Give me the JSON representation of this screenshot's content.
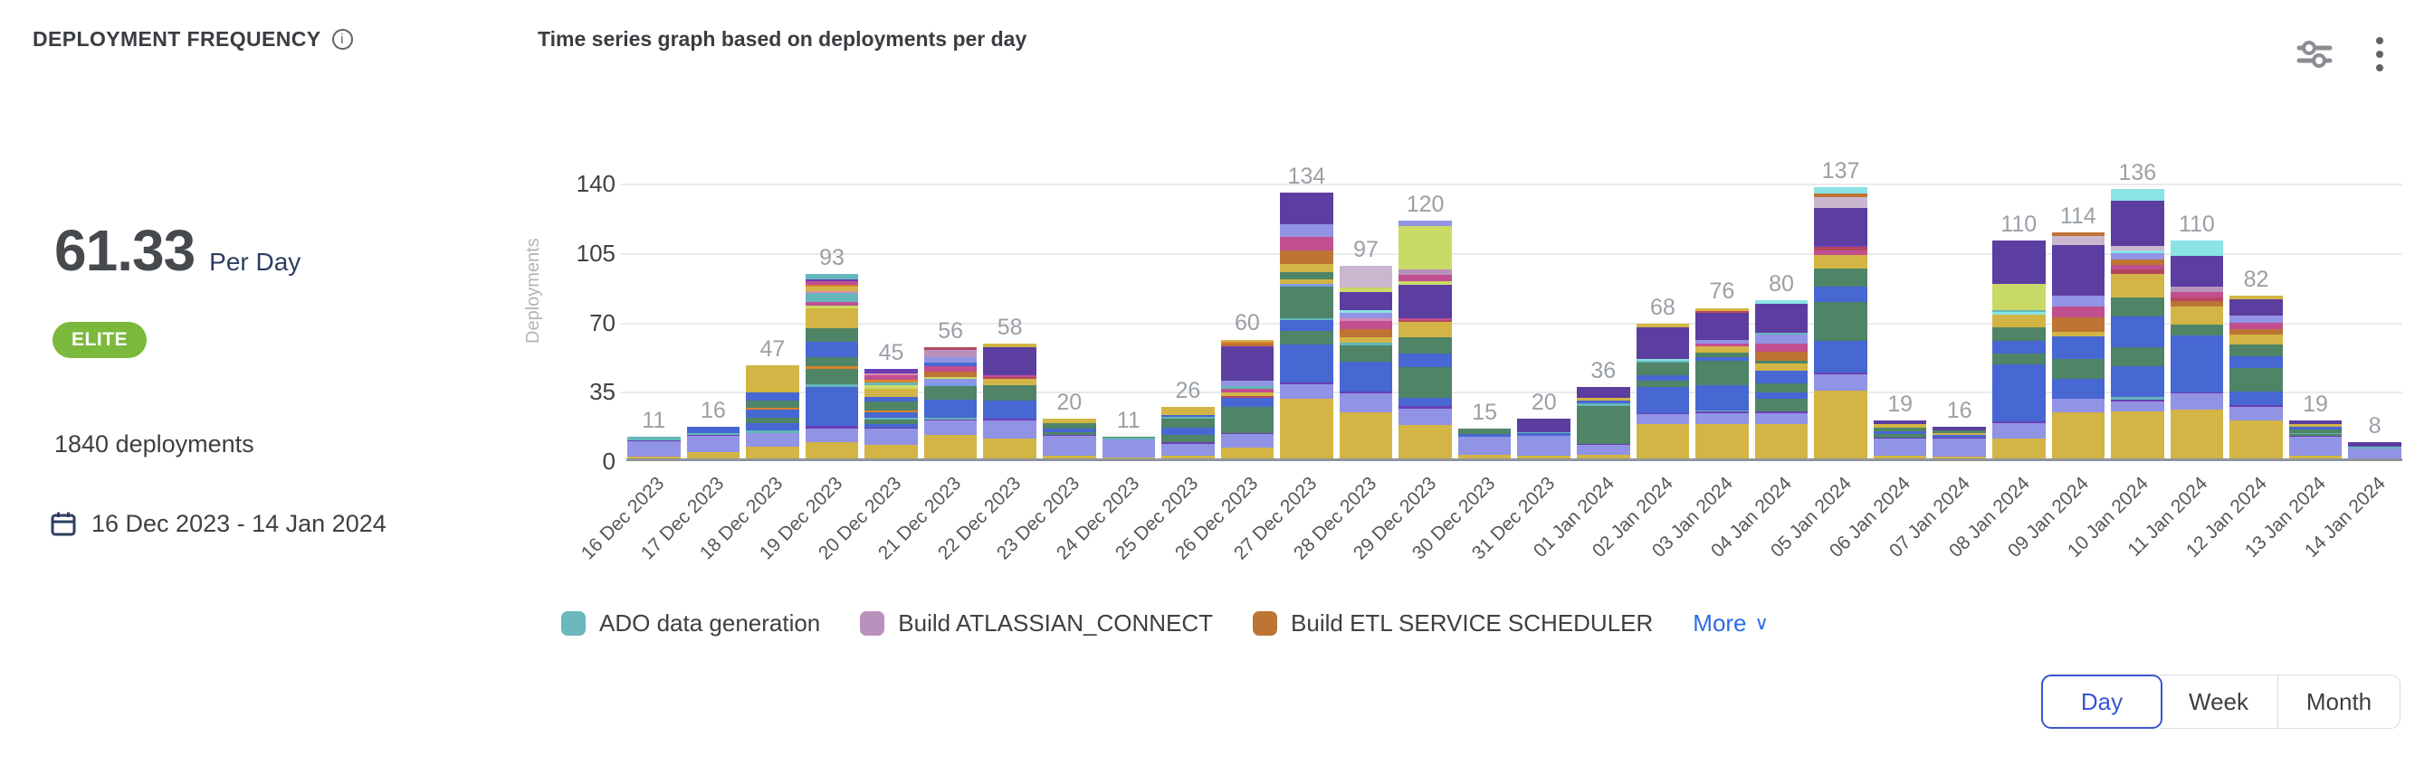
{
  "header": {
    "title": "DEPLOYMENT FREQUENCY",
    "info_icon": "i",
    "chart_title": "Time series graph based on deployments per day"
  },
  "summary": {
    "value": "61.33",
    "unit": "Per Day",
    "badge": "ELITE",
    "badge_color": "#7bb93d",
    "total_deployments": "1840 deployments",
    "date_range": "16 Dec 2023 - 14 Jan 2024"
  },
  "legend": {
    "items": [
      {
        "label": "ADO data generation",
        "color": "#6ab7bc"
      },
      {
        "label": "Build ATLASSIAN_CONNECT",
        "color": "#b892bd"
      },
      {
        "label": "Build ETL SERVICE SCHEDULER",
        "color": "#bd7434"
      }
    ],
    "more_label": "More",
    "more_chevron": "∨",
    "link_color": "#2e6be6"
  },
  "view_toggle": {
    "options": [
      "Day",
      "Week",
      "Month"
    ],
    "selected": "Day",
    "accent_color": "#3c55cf"
  },
  "chart_data": {
    "type": "bar",
    "stacked": true,
    "title": "Time series graph based on deployments per day",
    "xlabel": "",
    "ylabel": "Deployments",
    "ylim": [
      0,
      140
    ],
    "yticks": [
      0,
      35,
      70,
      105,
      140
    ],
    "grid": true,
    "legend_position": "bottom",
    "categories": [
      "16 Dec 2023",
      "17 Dec 2023",
      "18 Dec 2023",
      "19 Dec 2023",
      "20 Dec 2023",
      "21 Dec 2023",
      "22 Dec 2023",
      "23 Dec 2023",
      "24 Dec 2023",
      "25 Dec 2023",
      "26 Dec 2023",
      "27 Dec 2023",
      "28 Dec 2023",
      "29 Dec 2023",
      "30 Dec 2023",
      "31 Dec 2023",
      "01 Jan 2024",
      "02 Jan 2024",
      "03 Jan 2024",
      "04 Jan 2024",
      "05 Jan 2024",
      "06 Jan 2024",
      "07 Jan 2024",
      "08 Jan 2024",
      "09 Jan 2024",
      "10 Jan 2024",
      "11 Jan 2024",
      "12 Jan 2024",
      "13 Jan 2024",
      "14 Jan 2024"
    ],
    "values": [
      11,
      16,
      47,
      93,
      45,
      56,
      58,
      20,
      11,
      26,
      60,
      134,
      97,
      120,
      15,
      20,
      36,
      68,
      76,
      80,
      137,
      19,
      16,
      110,
      114,
      136,
      110,
      82,
      19,
      8
    ],
    "palette": {
      "g": "#d2b544",
      "p": "#9193e4",
      "b": "#4767d2",
      "gr": "#4f8467",
      "dp": "#5c3da0",
      "v": "#6a3fb5",
      "t": "#64b6bb",
      "c": "#8ce3e6",
      "l": "#cada67",
      "m": "#c14f90",
      "r": "#b5485e",
      "o": "#d9832c",
      "br": "#bd7434",
      "mv": "#b892bd",
      "lm": "#cbb6cf",
      "pk": "#d98ab0",
      "lb": "#7f9ae8"
    },
    "bar_segments": [
      [
        [
          "g",
          1
        ],
        [
          "p",
          7.5
        ],
        [
          "v",
          0.5
        ],
        [
          "t",
          2
        ]
      ],
      [
        [
          "g",
          3
        ],
        [
          "p",
          8.5
        ],
        [
          "v",
          0.5
        ],
        [
          "t",
          1
        ],
        [
          "b",
          3
        ]
      ],
      [
        [
          "g",
          6
        ],
        [
          "p",
          7
        ],
        [
          "t",
          1
        ],
        [
          "b",
          4
        ],
        [
          "gr",
          2.5
        ],
        [
          "b",
          4
        ],
        [
          "o",
          1
        ],
        [
          "gr",
          3.5
        ],
        [
          "b",
          4.5
        ],
        [
          "g",
          13.5
        ]
      ],
      [
        [
          "g",
          8
        ],
        [
          "p",
          6.5
        ],
        [
          "v",
          1
        ],
        [
          "b",
          19
        ],
        [
          "t",
          1
        ],
        [
          "gr",
          7.5
        ],
        [
          "o",
          1.5
        ],
        [
          "gr",
          4
        ],
        [
          "b",
          7.5
        ],
        [
          "gr",
          6.5
        ],
        [
          "g",
          9.5
        ],
        [
          "l",
          1.5
        ],
        [
          "m",
          1.5
        ],
        [
          "t",
          4.5
        ],
        [
          "pk",
          1
        ],
        [
          "g",
          2
        ],
        [
          "o",
          1
        ],
        [
          "m",
          1.5
        ],
        [
          "v",
          1
        ],
        [
          "t",
          2.5
        ]
      ],
      [
        [
          "g",
          7
        ],
        [
          "p",
          8.5
        ],
        [
          "v",
          0.6
        ],
        [
          "b",
          2
        ],
        [
          "gr",
          2
        ],
        [
          "t",
          1
        ],
        [
          "b",
          3
        ],
        [
          "o",
          1
        ],
        [
          "gr",
          4.5
        ],
        [
          "b",
          2.5
        ],
        [
          "g",
          4
        ],
        [
          "l",
          2
        ],
        [
          "t",
          1.5
        ],
        [
          "o",
          1.5
        ],
        [
          "m",
          2.5
        ],
        [
          "pk",
          1
        ],
        [
          "v",
          1.9
        ]
      ],
      [
        [
          "g",
          12
        ],
        [
          "p",
          7
        ],
        [
          "v",
          0.6
        ],
        [
          "t",
          1
        ],
        [
          "b",
          9
        ],
        [
          "gr",
          7
        ],
        [
          "lb",
          1.5
        ],
        [
          "p",
          2
        ],
        [
          "l",
          1
        ],
        [
          "br",
          2.5
        ],
        [
          "m",
          3
        ],
        [
          "b",
          2
        ],
        [
          "p",
          2.5
        ],
        [
          "mv",
          3.5
        ],
        [
          "r",
          1.4
        ]
      ],
      [
        [
          "g",
          10
        ],
        [
          "p",
          9
        ],
        [
          "v",
          1
        ],
        [
          "b",
          9
        ],
        [
          "gr",
          8
        ],
        [
          "g",
          3
        ],
        [
          "r",
          1
        ],
        [
          "m",
          1
        ],
        [
          "v",
          0.5
        ],
        [
          "dp",
          13.5
        ],
        [
          "g",
          2
        ]
      ],
      [
        [
          "g",
          1.2
        ],
        [
          "p",
          10
        ],
        [
          "v",
          0.5
        ],
        [
          "gr",
          1.5
        ],
        [
          "b",
          2
        ],
        [
          "gr",
          2.5
        ],
        [
          "g",
          2.3
        ]
      ],
      [
        [
          "g",
          0.6
        ],
        [
          "p",
          9
        ],
        [
          "t",
          0.9
        ],
        [
          "gr",
          0.5
        ]
      ],
      [
        [
          "g",
          1.5
        ],
        [
          "p",
          6
        ],
        [
          "v",
          0.5
        ],
        [
          "gr",
          4
        ],
        [
          "b",
          1.5
        ],
        [
          "b",
          2
        ],
        [
          "gr",
          4.5
        ],
        [
          "t",
          0.8
        ],
        [
          "b",
          1.2
        ],
        [
          "g",
          4
        ]
      ],
      [
        [
          "g",
          5
        ],
        [
          "p",
          6
        ],
        [
          "v",
          0.6
        ],
        [
          "gr",
          12
        ],
        [
          "b",
          4
        ],
        [
          "r",
          1.2
        ],
        [
          "g",
          1.5
        ],
        [
          "m",
          1.8
        ],
        [
          "t",
          1.2
        ],
        [
          "p",
          2.2
        ],
        [
          "dp",
          15
        ],
        [
          "v",
          1
        ],
        [
          "br",
          1.2
        ],
        [
          "o",
          0.8
        ],
        [
          "g",
          1
        ]
      ],
      [
        [
          "g",
          27
        ],
        [
          "p",
          6.5
        ],
        [
          "v",
          1
        ],
        [
          "b",
          9
        ],
        [
          "b",
          8
        ],
        [
          "gr",
          6
        ],
        [
          "b",
          5
        ],
        [
          "t",
          1
        ],
        [
          "gr",
          14
        ],
        [
          "lb",
          1.5
        ],
        [
          "g",
          2
        ],
        [
          "gr",
          3
        ],
        [
          "g",
          4
        ],
        [
          "br",
          6
        ],
        [
          "m",
          6
        ],
        [
          "p",
          6
        ],
        [
          "dp",
          14
        ]
      ],
      [
        [
          "g",
          20
        ],
        [
          "p",
          8
        ],
        [
          "v",
          0.8
        ],
        [
          "b",
          13
        ],
        [
          "gr",
          7
        ],
        [
          "t",
          1
        ],
        [
          "g",
          2.5
        ],
        [
          "br",
          3.5
        ],
        [
          "m",
          3.5
        ],
        [
          "pk",
          1
        ],
        [
          "p",
          2.5
        ],
        [
          "c",
          1
        ],
        [
          "dp",
          8
        ],
        [
          "l",
          2
        ],
        [
          "lm",
          9
        ]
      ],
      [
        [
          "g",
          13
        ],
        [
          "p",
          6.5
        ],
        [
          "v",
          1
        ],
        [
          "b",
          3
        ],
        [
          "gr",
          12
        ],
        [
          "b",
          5.5
        ],
        [
          "gr",
          6
        ],
        [
          "g",
          6
        ],
        [
          "r",
          0.8
        ],
        [
          "m",
          0.8
        ],
        [
          "dp",
          13
        ],
        [
          "l",
          1.5
        ],
        [
          "m",
          2.5
        ],
        [
          "mv",
          2
        ],
        [
          "l",
          17
        ],
        [
          "p",
          2
        ]
      ],
      [
        [
          "g",
          2
        ],
        [
          "p",
          9
        ],
        [
          "b",
          1.5
        ],
        [
          "gr",
          2.5
        ]
      ],
      [
        [
          "g",
          1.2
        ],
        [
          "p",
          10
        ],
        [
          "b",
          1.5
        ],
        [
          "t",
          0.6
        ],
        [
          "dp",
          6.7
        ]
      ],
      [
        [
          "g",
          2
        ],
        [
          "p",
          4.5
        ],
        [
          "v",
          0.6
        ],
        [
          "gr",
          19
        ],
        [
          "t",
          1
        ],
        [
          "b",
          1.5
        ],
        [
          "g",
          1.2
        ],
        [
          "dp",
          5.5
        ]
      ],
      [
        [
          "g",
          16
        ],
        [
          "p",
          4.5
        ],
        [
          "v",
          0.6
        ],
        [
          "b",
          12
        ],
        [
          "gr",
          3
        ],
        [
          "b",
          2.5
        ],
        [
          "gr",
          6
        ],
        [
          "t",
          1
        ],
        [
          "c",
          0.6
        ],
        [
          "dp",
          15
        ],
        [
          "g",
          1.5
        ]
      ],
      [
        [
          "g",
          17
        ],
        [
          "p",
          5
        ],
        [
          "v",
          1
        ],
        [
          "t",
          0.6
        ],
        [
          "b",
          8
        ],
        [
          "b",
          4
        ],
        [
          "gr",
          12
        ],
        [
          "b",
          2
        ],
        [
          "gr",
          2
        ],
        [
          "g",
          3
        ],
        [
          "m",
          1.5
        ],
        [
          "p",
          2
        ],
        [
          "dp",
          13
        ],
        [
          "r",
          1
        ],
        [
          "g",
          1.5
        ]
      ],
      [
        [
          "g",
          16
        ],
        [
          "p",
          5
        ],
        [
          "v",
          0.6
        ],
        [
          "gr",
          6
        ],
        [
          "b",
          3
        ],
        [
          "gr",
          4
        ],
        [
          "b",
          6
        ],
        [
          "g",
          3
        ],
        [
          "gr",
          1.5
        ],
        [
          "br",
          4
        ],
        [
          "m",
          4
        ],
        [
          "p",
          4
        ],
        [
          "t",
          1
        ],
        [
          "dp",
          13
        ],
        [
          "c",
          2
        ]
      ],
      [
        [
          "g",
          30
        ],
        [
          "p",
          7
        ],
        [
          "v",
          1
        ],
        [
          "b",
          14
        ],
        [
          "gr",
          9
        ],
        [
          "gr",
          8
        ],
        [
          "b",
          7
        ],
        [
          "gr",
          8
        ],
        [
          "g",
          6
        ],
        [
          "m",
          2
        ],
        [
          "r",
          1.5
        ],
        [
          "v",
          1
        ],
        [
          "dp",
          16
        ],
        [
          "lm",
          5
        ],
        [
          "br",
          1.5
        ],
        [
          "c",
          3
        ]
      ],
      [
        [
          "g",
          1.2
        ],
        [
          "p",
          9
        ],
        [
          "v",
          0.5
        ],
        [
          "gr",
          1.5
        ],
        [
          "b",
          1.5
        ],
        [
          "gr",
          2
        ],
        [
          "g",
          1.5
        ],
        [
          "dp",
          1.8
        ]
      ],
      [
        [
          "g",
          1
        ],
        [
          "p",
          9
        ],
        [
          "v",
          0.5
        ],
        [
          "b",
          1.5
        ],
        [
          "g",
          1
        ],
        [
          "gr",
          1
        ],
        [
          "dp",
          2
        ]
      ],
      [
        [
          "g",
          9
        ],
        [
          "p",
          7
        ],
        [
          "v",
          1
        ],
        [
          "b",
          26
        ],
        [
          "gr",
          5
        ],
        [
          "b",
          6
        ],
        [
          "gr",
          6
        ],
        [
          "g",
          6
        ],
        [
          "c",
          1
        ],
        [
          "t",
          1
        ],
        [
          "l",
          12
        ],
        [
          "dp",
          20
        ]
      ],
      [
        [
          "g",
          21
        ],
        [
          "p",
          6
        ],
        [
          "b",
          9
        ],
        [
          "gr",
          9
        ],
        [
          "b",
          10
        ],
        [
          "g",
          2
        ],
        [
          "br",
          6.5
        ],
        [
          "m",
          5
        ],
        [
          "p",
          5
        ],
        [
          "dp",
          23
        ],
        [
          "lm",
          4
        ],
        [
          "br",
          1.5
        ]
      ],
      [
        [
          "g",
          20
        ],
        [
          "p",
          4
        ],
        [
          "v",
          1
        ],
        [
          "t",
          1
        ],
        [
          "b",
          13
        ],
        [
          "gr",
          8
        ],
        [
          "b",
          13
        ],
        [
          "gr",
          8
        ],
        [
          "g",
          10
        ],
        [
          "r",
          2
        ],
        [
          "m",
          2
        ],
        [
          "br",
          2
        ],
        [
          "p",
          3
        ],
        [
          "c",
          1
        ],
        [
          "lm",
          2
        ],
        [
          "dp",
          19
        ],
        [
          "c",
          5
        ]
      ],
      [
        [
          "g",
          19
        ],
        [
          "p",
          6
        ],
        [
          "v",
          0.6
        ],
        [
          "b",
          14
        ],
        [
          "b",
          8
        ],
        [
          "gr",
          4
        ],
        [
          "g",
          7
        ],
        [
          "br",
          2
        ],
        [
          "r",
          1.5
        ],
        [
          "m",
          2
        ],
        [
          "mv",
          2
        ],
        [
          "dp",
          12
        ],
        [
          "c",
          6
        ]
      ],
      [
        [
          "g",
          16
        ],
        [
          "p",
          6
        ],
        [
          "v",
          0.6
        ],
        [
          "b",
          6
        ],
        [
          "gr",
          10
        ],
        [
          "b",
          5
        ],
        [
          "gr",
          5
        ],
        [
          "g",
          4
        ],
        [
          "br",
          2.5
        ],
        [
          "m",
          2.5
        ],
        [
          "p",
          3
        ],
        [
          "dp",
          7
        ],
        [
          "g",
          1.5
        ]
      ],
      [
        [
          "g",
          1.2
        ],
        [
          "p",
          10
        ],
        [
          "v",
          0.5
        ],
        [
          "gr",
          1
        ],
        [
          "t",
          0.5
        ],
        [
          "gr",
          2
        ],
        [
          "b",
          1
        ],
        [
          "g",
          1.5
        ],
        [
          "dp",
          1.8
        ]
      ],
      [
        [
          "p",
          5
        ],
        [
          "t",
          1
        ],
        [
          "v",
          0.5
        ],
        [
          "dp",
          1.5
        ]
      ]
    ]
  }
}
